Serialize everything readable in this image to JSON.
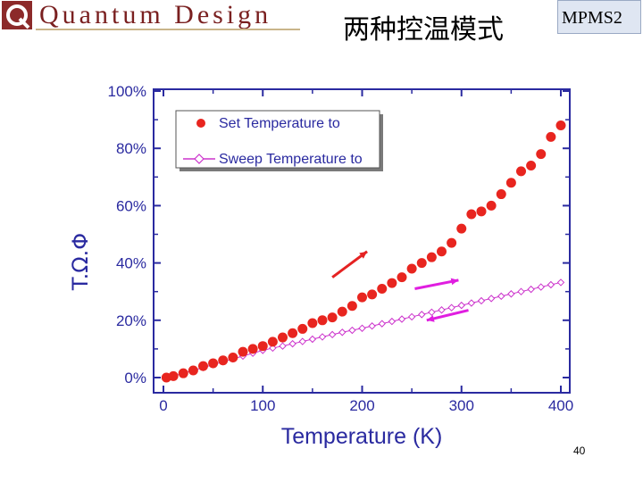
{
  "header": {
    "logo_text": "Quantum Design",
    "title": "两种控温模式",
    "tag": "MPMS2"
  },
  "footer": {
    "page_number": "40"
  },
  "colors": {
    "series1": "#e8251f",
    "series2": "#cc33cc",
    "arrow_red": "#e52222",
    "arrow_magenta": "#e01ee0",
    "logo": "#7a2020"
  },
  "chart_data": {
    "type": "scatter",
    "xlabel": "Temperature (K)",
    "ylabel": "T.Ω.Φ",
    "xlim": [
      0,
      400
    ],
    "ylim": [
      0,
      100
    ],
    "x_ticks": [
      "0",
      "100",
      "200",
      "300",
      "400"
    ],
    "y_ticks": [
      "0%",
      "20%",
      "40%",
      "60%",
      "80%",
      "100%"
    ],
    "legend_position": "top-left",
    "series": [
      {
        "name": "Set Temperature to",
        "marker": "filled-circle",
        "x": [
          3,
          10,
          20,
          30,
          40,
          50,
          60,
          70,
          80,
          90,
          100,
          110,
          120,
          130,
          140,
          150,
          160,
          170,
          180,
          190,
          200,
          210,
          220,
          230,
          240,
          250,
          260,
          270,
          280,
          290,
          300,
          310,
          320,
          330,
          340,
          350,
          360,
          370,
          380,
          390,
          400
        ],
        "y": [
          0,
          0.5,
          1.5,
          2.5,
          4,
          5,
          6,
          7,
          9,
          10,
          11,
          12.5,
          14,
          15.5,
          17,
          19,
          20,
          21,
          23,
          25,
          28,
          29,
          31,
          33,
          35,
          38,
          40,
          42,
          44,
          47,
          52,
          57,
          58,
          60,
          64,
          68,
          72,
          74,
          78,
          84,
          88
        ]
      },
      {
        "name": "Sweep Temperature to",
        "marker": "open-diamond",
        "x": [
          3,
          10,
          20,
          30,
          40,
          50,
          60,
          70,
          80,
          90,
          100,
          110,
          120,
          130,
          140,
          150,
          160,
          170,
          180,
          190,
          200,
          210,
          220,
          230,
          240,
          250,
          260,
          270,
          280,
          290,
          300,
          310,
          320,
          330,
          340,
          350,
          360,
          370,
          380,
          390,
          400
        ],
        "y": [
          0,
          0.5,
          1.5,
          2.5,
          3.5,
          4.5,
          5.5,
          6.5,
          7.5,
          8.5,
          9.5,
          10.3,
          11,
          11.8,
          12.6,
          13.4,
          14.2,
          15,
          15.8,
          16.5,
          17.2,
          18,
          18.8,
          19.6,
          20.4,
          21.2,
          22,
          22.8,
          23.6,
          24.4,
          25.2,
          26,
          26.8,
          27.6,
          28.4,
          29.2,
          30,
          30.8,
          31.6,
          32.4,
          33.2
        ]
      }
    ]
  }
}
